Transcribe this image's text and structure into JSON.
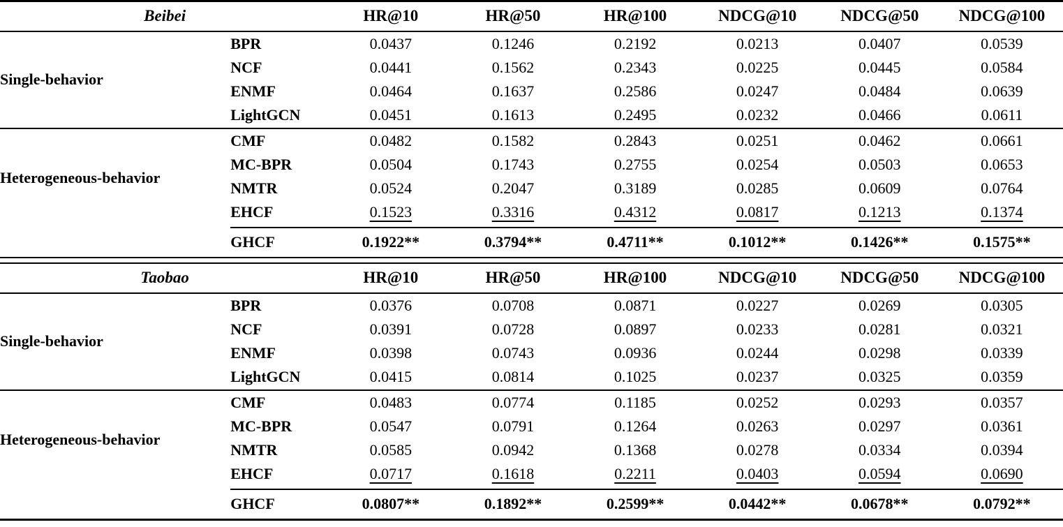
{
  "page": {
    "background": "#ffffff",
    "text_color": "#000000"
  },
  "table": {
    "metric_headers": [
      "HR@10",
      "HR@50",
      "HR@100",
      "NDCG@10",
      "NDCG@50",
      "NDCG@100"
    ],
    "sections": [
      {
        "dataset": "Beibei",
        "groups": [
          {
            "label": "Single-behavior",
            "rows": [
              {
                "method": "BPR",
                "values": [
                  "0.0437",
                  "0.1246",
                  "0.2192",
                  "0.0213",
                  "0.0407",
                  "0.0539"
                ]
              },
              {
                "method": "NCF",
                "values": [
                  "0.0441",
                  "0.1562",
                  "0.2343",
                  "0.0225",
                  "0.0445",
                  "0.0584"
                ]
              },
              {
                "method": "ENMF",
                "values": [
                  "0.0464",
                  "0.1637",
                  "0.2586",
                  "0.0247",
                  "0.0484",
                  "0.0639"
                ]
              },
              {
                "method": "LightGCN",
                "values": [
                  "0.0451",
                  "0.1613",
                  "0.2495",
                  "0.0232",
                  "0.0466",
                  "0.0611"
                ]
              }
            ]
          },
          {
            "label": "Heterogeneous-behavior",
            "rows": [
              {
                "method": "CMF",
                "values": [
                  "0.0482",
                  "0.1582",
                  "0.2843",
                  "0.0251",
                  "0.0462",
                  "0.0661"
                ]
              },
              {
                "method": "MC-BPR",
                "values": [
                  "0.0504",
                  "0.1743",
                  "0.2755",
                  "0.0254",
                  "0.0503",
                  "0.0653"
                ]
              },
              {
                "method": "NMTR",
                "values": [
                  "0.0524",
                  "0.2047",
                  "0.3189",
                  "0.0285",
                  "0.0609",
                  "0.0764"
                ]
              },
              {
                "method": "EHCF",
                "values": [
                  "0.1523",
                  "0.3316",
                  "0.4312",
                  "0.0817",
                  "0.1213",
                  "0.1374"
                ]
              }
            ]
          }
        ],
        "best": {
          "method": "GHCF",
          "values": [
            "0.1922**",
            "0.3794**",
            "0.4711**",
            "0.1012**",
            "0.1426**",
            "0.1575**"
          ]
        }
      },
      {
        "dataset": "Taobao",
        "groups": [
          {
            "label": "Single-behavior",
            "rows": [
              {
                "method": "BPR",
                "values": [
                  "0.0376",
                  "0.0708",
                  "0.0871",
                  "0.0227",
                  "0.0269",
                  "0.0305"
                ]
              },
              {
                "method": "NCF",
                "values": [
                  "0.0391",
                  "0.0728",
                  "0.0897",
                  "0.0233",
                  "0.0281",
                  "0.0321"
                ]
              },
              {
                "method": "ENMF",
                "values": [
                  "0.0398",
                  "0.0743",
                  "0.0936",
                  "0.0244",
                  "0.0298",
                  "0.0339"
                ]
              },
              {
                "method": "LightGCN",
                "values": [
                  "0.0415",
                  "0.0814",
                  "0.1025",
                  "0.0237",
                  "0.0325",
                  "0.0359"
                ]
              }
            ]
          },
          {
            "label": "Heterogeneous-behavior",
            "rows": [
              {
                "method": "CMF",
                "values": [
                  "0.0483",
                  "0.0774",
                  "0.1185",
                  "0.0252",
                  "0.0293",
                  "0.0357"
                ]
              },
              {
                "method": "MC-BPR",
                "values": [
                  "0.0547",
                  "0.0791",
                  "0.1264",
                  "0.0263",
                  "0.0297",
                  "0.0361"
                ]
              },
              {
                "method": "NMTR",
                "values": [
                  "0.0585",
                  "0.0942",
                  "0.1368",
                  "0.0278",
                  "0.0334",
                  "0.0394"
                ]
              },
              {
                "method": "EHCF",
                "values": [
                  "0.0717",
                  "0.1618",
                  "0.2211",
                  "0.0403",
                  "0.0594",
                  "0.0690"
                ]
              }
            ]
          }
        ],
        "best": {
          "method": "GHCF",
          "values": [
            "0.0807**",
            "0.1892**",
            "0.2599**",
            "0.0442**",
            "0.0678**",
            "0.0792**"
          ]
        }
      }
    ]
  }
}
